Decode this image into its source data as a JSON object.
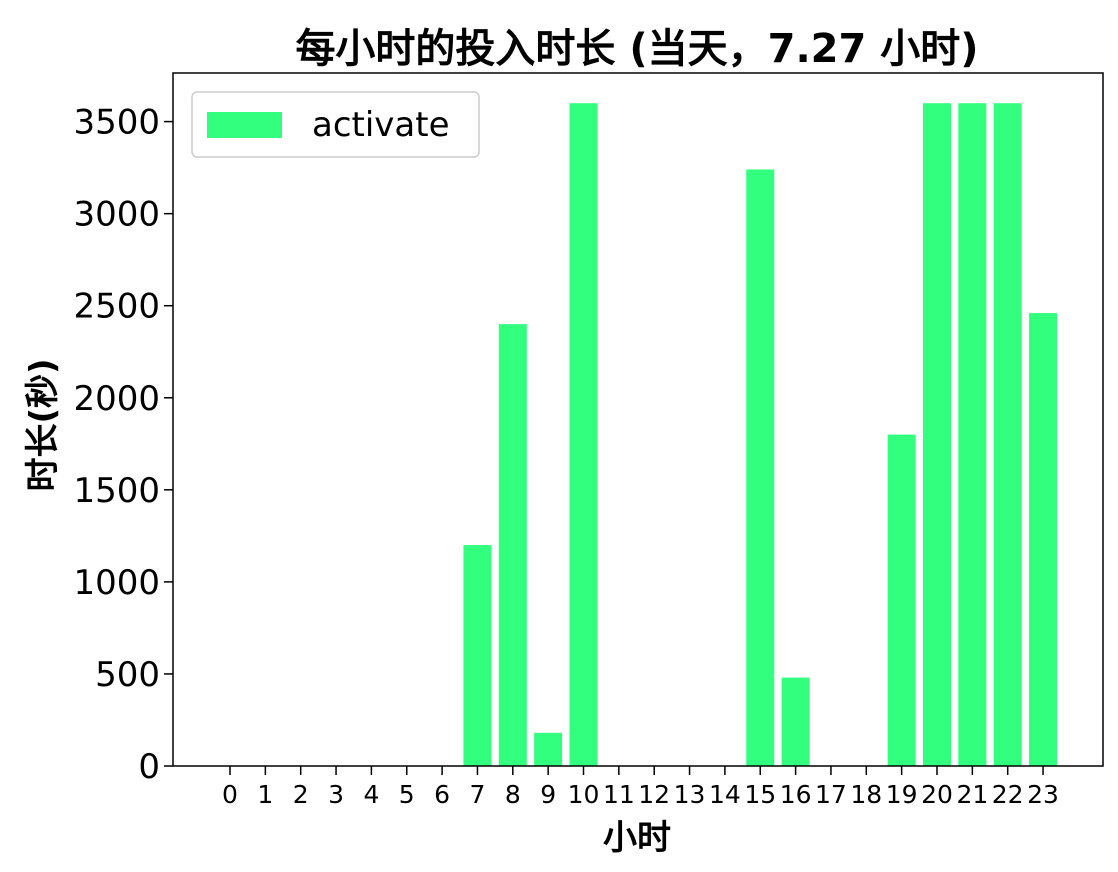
{
  "chart_data": {
    "type": "bar",
    "title": "每小时的投入时长 (当天，7.27 小时)",
    "xlabel": "小时",
    "ylabel": "时长(秒)",
    "categories": [
      "0",
      "1",
      "2",
      "3",
      "4",
      "5",
      "6",
      "7",
      "8",
      "9",
      "10",
      "11",
      "12",
      "13",
      "14",
      "15",
      "16",
      "17",
      "18",
      "19",
      "20",
      "21",
      "22",
      "23"
    ],
    "series": [
      {
        "name": "activate",
        "color": "#33ff7f",
        "values": [
          0,
          0,
          0,
          0,
          0,
          0,
          0,
          1200,
          2400,
          180,
          3600,
          0,
          0,
          0,
          0,
          3240,
          480,
          0,
          0,
          1800,
          3600,
          3600,
          3600,
          2460
        ]
      }
    ],
    "ylim": [
      0,
      3780
    ],
    "yticks": [
      "0",
      "500",
      "1000",
      "1500",
      "2000",
      "2500",
      "3000",
      "3500"
    ],
    "legend": "top-left",
    "grid": false
  }
}
